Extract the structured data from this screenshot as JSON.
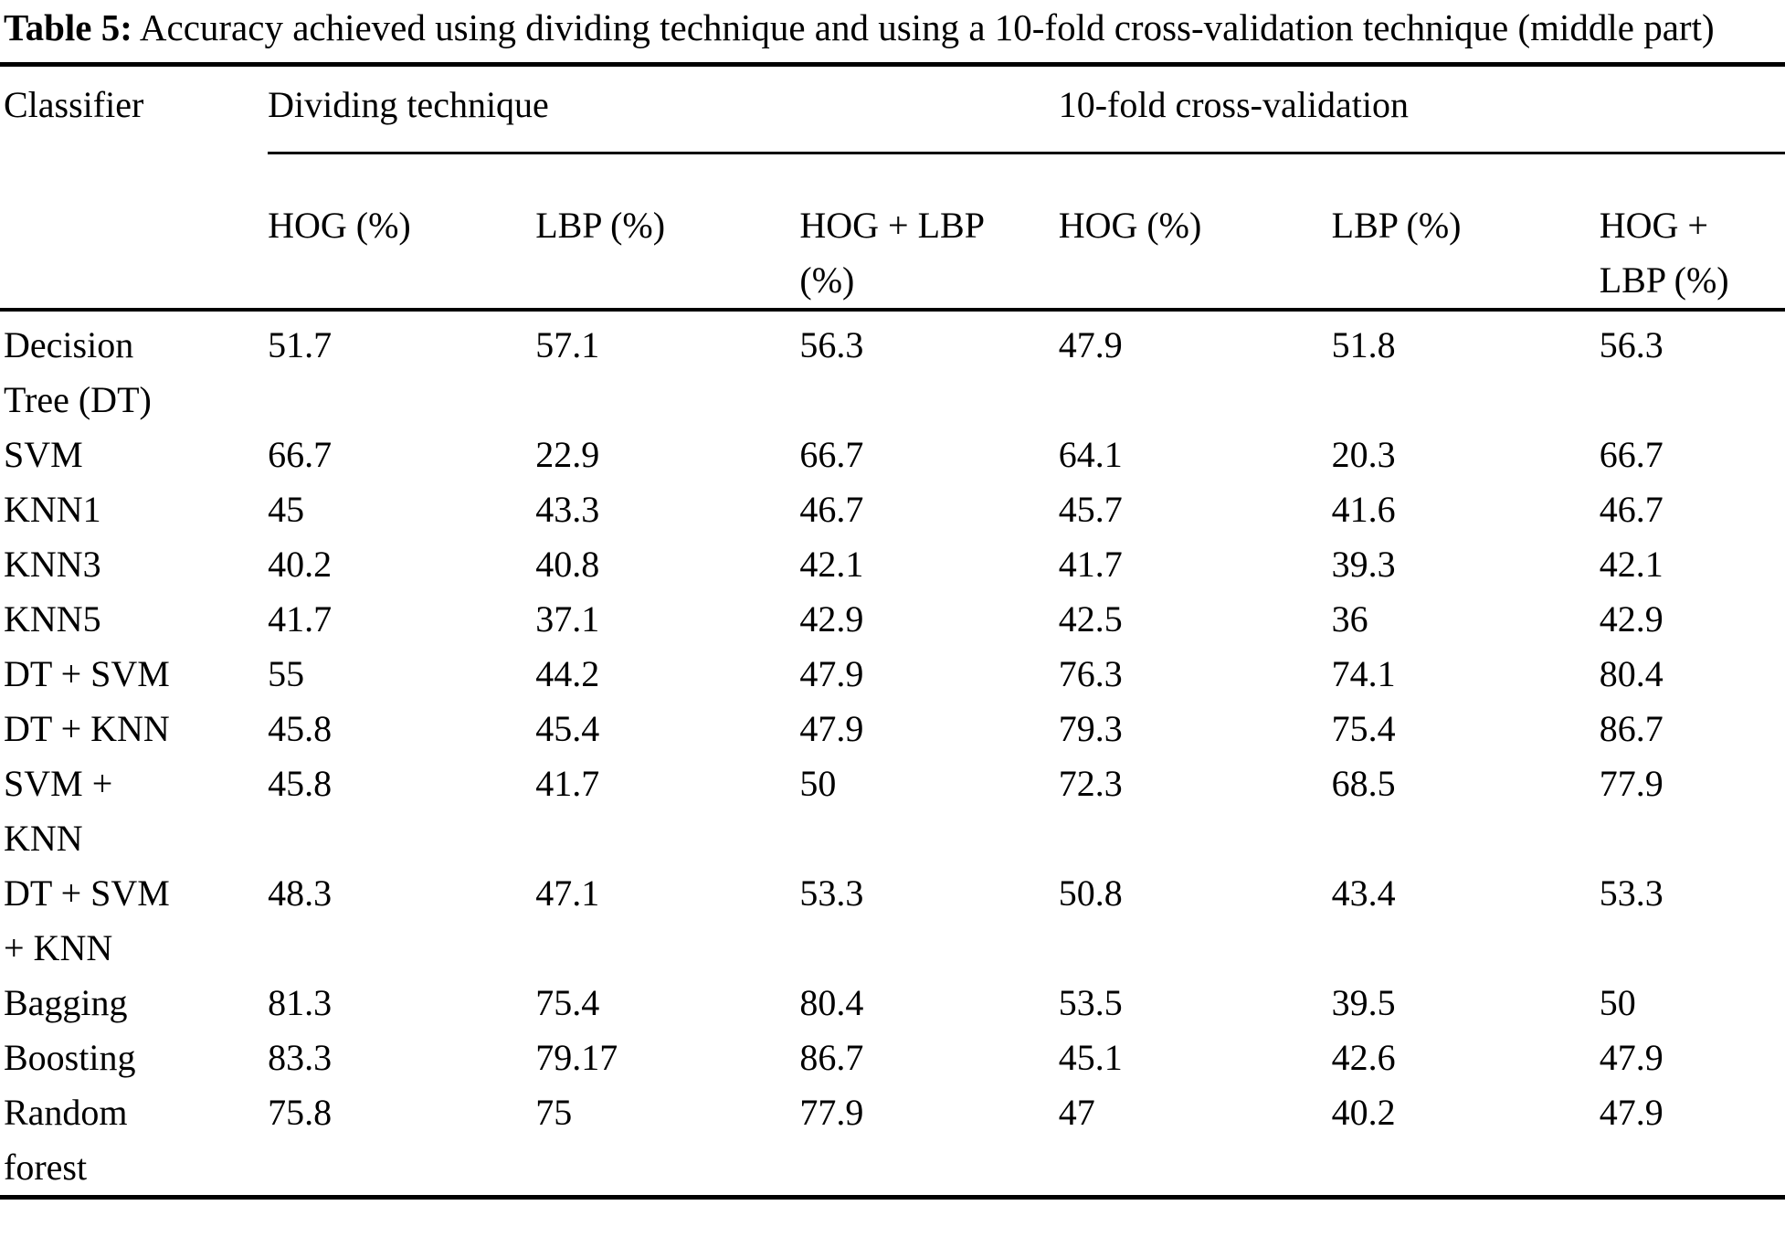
{
  "caption": {
    "label": "Table 5:",
    "body": "Accuracy achieved using dividing technique and using a 10-fold cross-validation technique (middle part)"
  },
  "table": {
    "corner_header": "Classifier",
    "groups": [
      {
        "label": "Dividing technique",
        "columns": [
          "HOG (%)",
          "LBP (%)",
          "HOG + LBP\n(%)"
        ]
      },
      {
        "label": "10-fold cross-validation",
        "columns": [
          "HOG (%)",
          "LBP (%)",
          "HOG +\nLBP (%)"
        ]
      }
    ],
    "rows": [
      {
        "classifier": "Decision\nTree (DT)",
        "values": [
          "51.7",
          "57.1",
          "56.3",
          "47.9",
          "51.8",
          "56.3"
        ]
      },
      {
        "classifier": "SVM",
        "values": [
          "66.7",
          "22.9",
          "66.7",
          "64.1",
          "20.3",
          "66.7"
        ]
      },
      {
        "classifier": "KNN1",
        "values": [
          "45",
          "43.3",
          "46.7",
          "45.7",
          "41.6",
          "46.7"
        ]
      },
      {
        "classifier": "KNN3",
        "values": [
          "40.2",
          "40.8",
          "42.1",
          "41.7",
          "39.3",
          "42.1"
        ]
      },
      {
        "classifier": "KNN5",
        "values": [
          "41.7",
          "37.1",
          "42.9",
          "42.5",
          "36",
          "42.9"
        ]
      },
      {
        "classifier": "DT + SVM",
        "values": [
          "55",
          "44.2",
          "47.9",
          "76.3",
          "74.1",
          "80.4"
        ]
      },
      {
        "classifier": "DT + KNN",
        "values": [
          "45.8",
          "45.4",
          "47.9",
          "79.3",
          "75.4",
          "86.7"
        ]
      },
      {
        "classifier": "SVM +\nKNN",
        "values": [
          "45.8",
          "41.7",
          "50",
          "72.3",
          "68.5",
          "77.9"
        ]
      },
      {
        "classifier": "DT + SVM\n+ KNN",
        "values": [
          "48.3",
          "47.1",
          "53.3",
          "50.8",
          "43.4",
          "53.3"
        ]
      },
      {
        "classifier": "Bagging",
        "values": [
          "81.3",
          "75.4",
          "80.4",
          "53.5",
          "39.5",
          "50"
        ]
      },
      {
        "classifier": "Boosting",
        "values": [
          "83.3",
          "79.17",
          "86.7",
          "45.1",
          "42.6",
          "47.9"
        ]
      },
      {
        "classifier": "Random\nforest",
        "values": [
          "75.8",
          "75",
          "77.9",
          "47",
          "40.2",
          "47.9"
        ]
      }
    ]
  },
  "colors": {
    "text": "#000000",
    "background": "#ffffff",
    "rule": "#000000"
  }
}
